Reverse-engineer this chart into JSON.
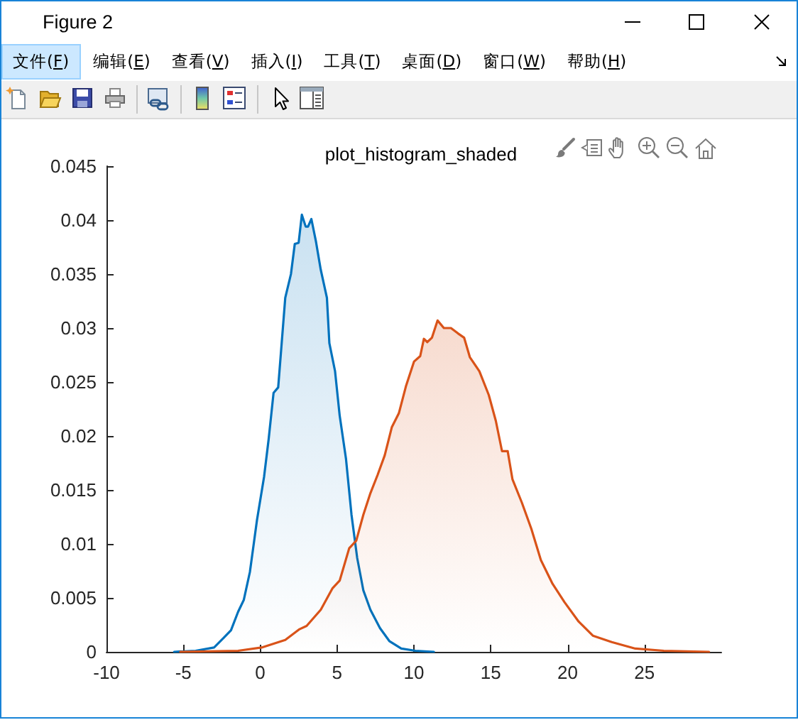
{
  "chart_data": {
    "type": "area",
    "title": "plot_histogram_shaded",
    "annotations": [
      "Figure 2",
      "文件(F)",
      "编辑(E)",
      "查看(V)",
      "插入(I)",
      "工具(T)",
      "桌面(D)",
      "窗口(W)",
      "帮助(H)"
    ],
    "xlim": [
      -10,
      30
    ],
    "xticks": [
      -10,
      -5,
      0,
      5,
      10,
      15,
      20,
      25
    ],
    "ylim": [
      0,
      0.045
    ],
    "yticks": [
      0,
      0.005,
      0.01,
      0.015,
      0.02,
      0.025,
      0.03,
      0.035,
      0.04,
      0.045
    ],
    "grid": false,
    "series": [
      {
        "color": "#0072bd",
        "x": [
          -5.6,
          -4.2,
          -3.0,
          -2.37,
          -1.9,
          -1.44,
          -1.07,
          -0.67,
          -0.21,
          0.25,
          0.55,
          0.87,
          1.17,
          1.63,
          2.0,
          2.25,
          2.5,
          2.71,
          2.96,
          3.11,
          3.33,
          3.63,
          3.94,
          4.34,
          4.5,
          4.87,
          5.17,
          5.58,
          5.94,
          6.31,
          6.71,
          7.17,
          7.79,
          8.4,
          9.18,
          10.1,
          11.3
        ],
        "values": [
          0,
          0.0001,
          0.0004,
          0.0013,
          0.002,
          0.0037,
          0.0048,
          0.0074,
          0.0122,
          0.0162,
          0.0197,
          0.024,
          0.0245,
          0.0328,
          0.035,
          0.0378,
          0.0379,
          0.0405,
          0.0394,
          0.0394,
          0.0401,
          0.038,
          0.0354,
          0.0328,
          0.0286,
          0.026,
          0.0219,
          0.0179,
          0.0127,
          0.0087,
          0.0057,
          0.0039,
          0.0022,
          0.001,
          0.0003,
          0.0001,
          0
        ]
      },
      {
        "color": "#d95319",
        "x": [
          -5.2,
          -1.44,
          0.09,
          1.63,
          2.56,
          3.02,
          3.94,
          4.71,
          5.17,
          5.79,
          6.25,
          6.71,
          7.17,
          7.64,
          8.1,
          8.56,
          9.02,
          9.48,
          10.01,
          10.41,
          10.65,
          10.87,
          11.17,
          11.54,
          11.95,
          12.41,
          12.87,
          13.27,
          13.64,
          14.26,
          14.87,
          15.33,
          15.73,
          16.1,
          16.41,
          17.03,
          17.64,
          18.26,
          19.02,
          19.8,
          20.72,
          21.64,
          22.87,
          24.41,
          26.26,
          29.2
        ],
        "values": [
          0,
          0.0001,
          0.0004,
          0.0011,
          0.0021,
          0.0024,
          0.0039,
          0.0059,
          0.0066,
          0.0096,
          0.0103,
          0.0127,
          0.0147,
          0.0164,
          0.0182,
          0.0208,
          0.0221,
          0.0246,
          0.0269,
          0.0274,
          0.029,
          0.0287,
          0.0291,
          0.0307,
          0.03,
          0.03,
          0.0295,
          0.0291,
          0.0273,
          0.026,
          0.0238,
          0.0214,
          0.0186,
          0.0186,
          0.016,
          0.0138,
          0.0114,
          0.0085,
          0.0063,
          0.0046,
          0.0028,
          0.0015,
          0.0009,
          0.0003,
          0.0001,
          0
        ]
      }
    ]
  }
}
